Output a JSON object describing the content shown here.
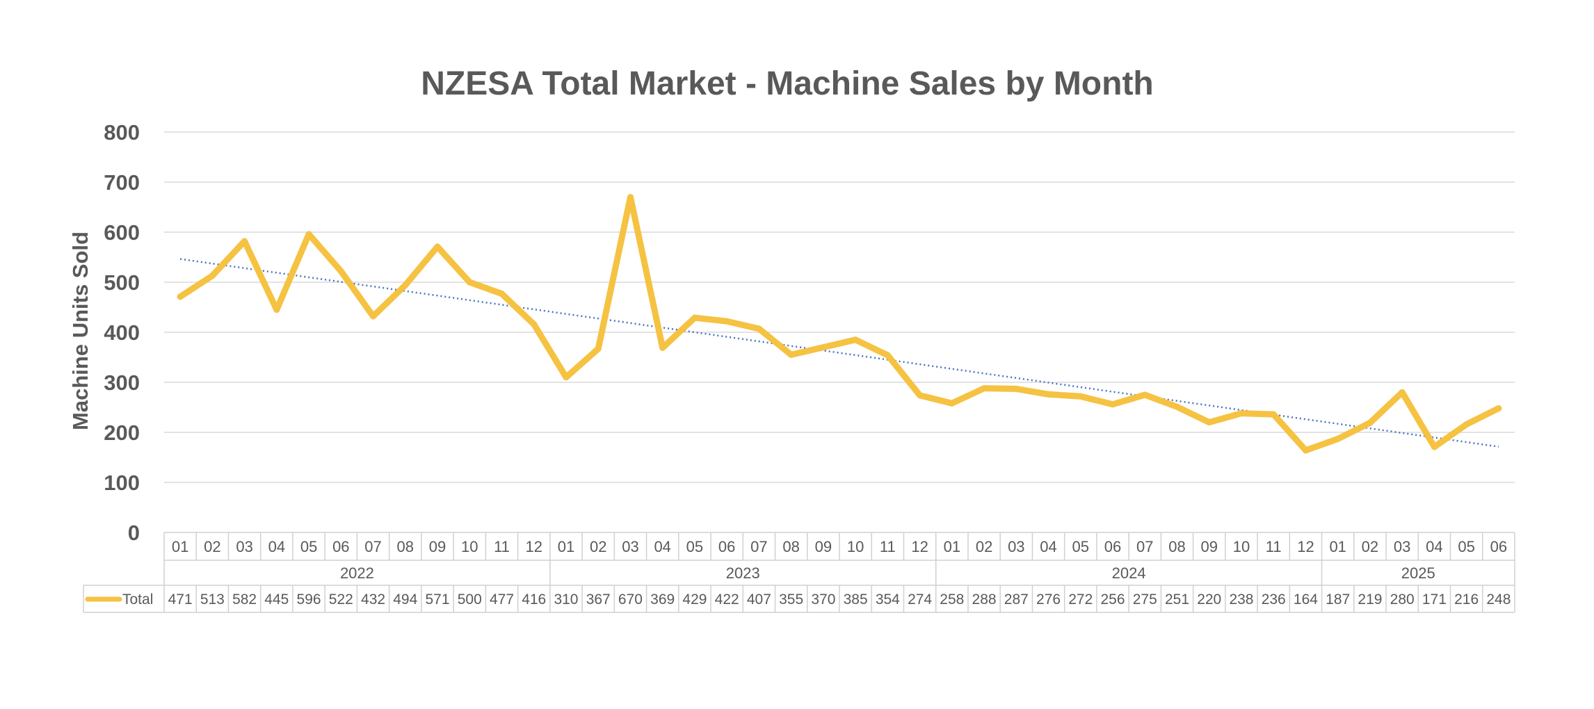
{
  "chart_data": {
    "type": "line",
    "title": "NZESA Total Market - Machine Sales by Month",
    "ylabel": "Machine Units Sold",
    "ylim": [
      0,
      800
    ],
    "yticks": [
      0,
      100,
      200,
      300,
      400,
      500,
      600,
      700,
      800
    ],
    "grid": true,
    "months": [
      "01",
      "02",
      "03",
      "04",
      "05",
      "06",
      "07",
      "08",
      "09",
      "10",
      "11",
      "12",
      "01",
      "02",
      "03",
      "04",
      "05",
      "06",
      "07",
      "08",
      "09",
      "10",
      "11",
      "12",
      "01",
      "02",
      "03",
      "04",
      "05",
      "06",
      "07",
      "08",
      "09",
      "10",
      "11",
      "12",
      "01",
      "02",
      "03",
      "04",
      "05",
      "06"
    ],
    "years": [
      {
        "label": "2022",
        "count": 12
      },
      {
        "label": "2023",
        "count": 12
      },
      {
        "label": "2024",
        "count": 12
      },
      {
        "label": "2025",
        "count": 6
      }
    ],
    "series": [
      {
        "name": "Total",
        "color": "#F5C242",
        "values": [
          471,
          513,
          582,
          445,
          596,
          522,
          432,
          494,
          571,
          500,
          477,
          416,
          310,
          367,
          670,
          369,
          429,
          422,
          407,
          355,
          370,
          385,
          354,
          274,
          258,
          288,
          287,
          276,
          272,
          256,
          275,
          251,
          220,
          238,
          236,
          164,
          187,
          219,
          280,
          171,
          216,
          248
        ]
      }
    ],
    "trendline": {
      "type": "linear",
      "color": "#4472C4",
      "style": "dotted"
    },
    "data_table": true
  }
}
